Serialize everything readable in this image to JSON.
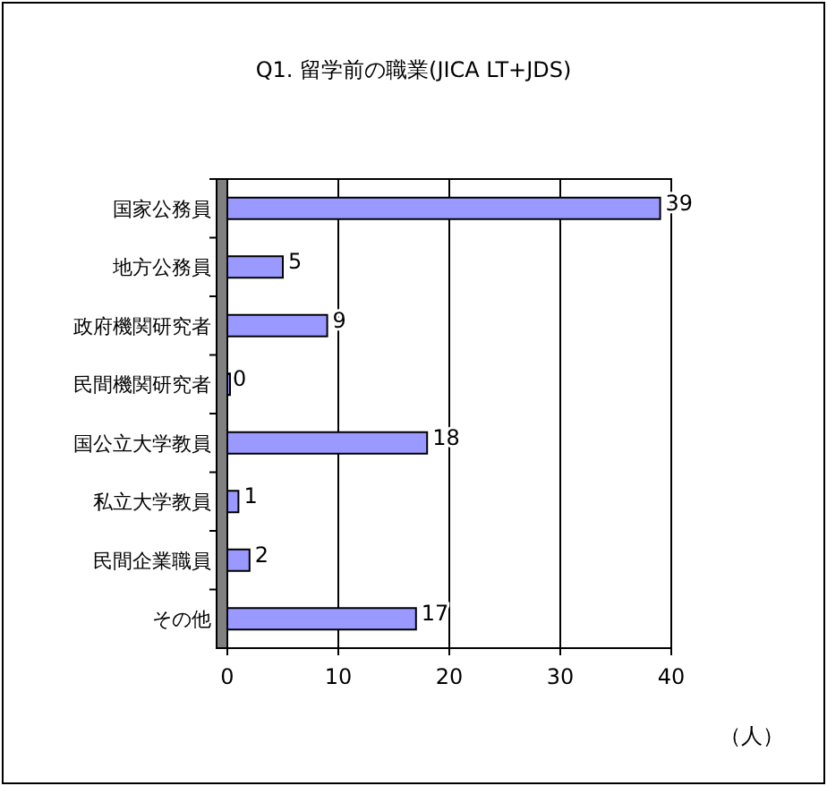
{
  "chart_data": {
    "type": "bar",
    "orientation": "horizontal",
    "title": "Q1. 留学前の職業(JICA LT+JDS)",
    "categories": [
      "国家公務員",
      "地方公務員",
      "政府機関研究者",
      "民間機関研究者",
      "国公立大学教員",
      "私立大学教員",
      "民間企業職員",
      "その他"
    ],
    "values": [
      39,
      5,
      9,
      0,
      18,
      1,
      2,
      17
    ],
    "color": "#9999ff",
    "xlim": [
      0,
      40
    ],
    "xticks": [
      0,
      10,
      20,
      30,
      40
    ],
    "grid": "x",
    "data_labels": true,
    "xlabel": "（人）"
  }
}
